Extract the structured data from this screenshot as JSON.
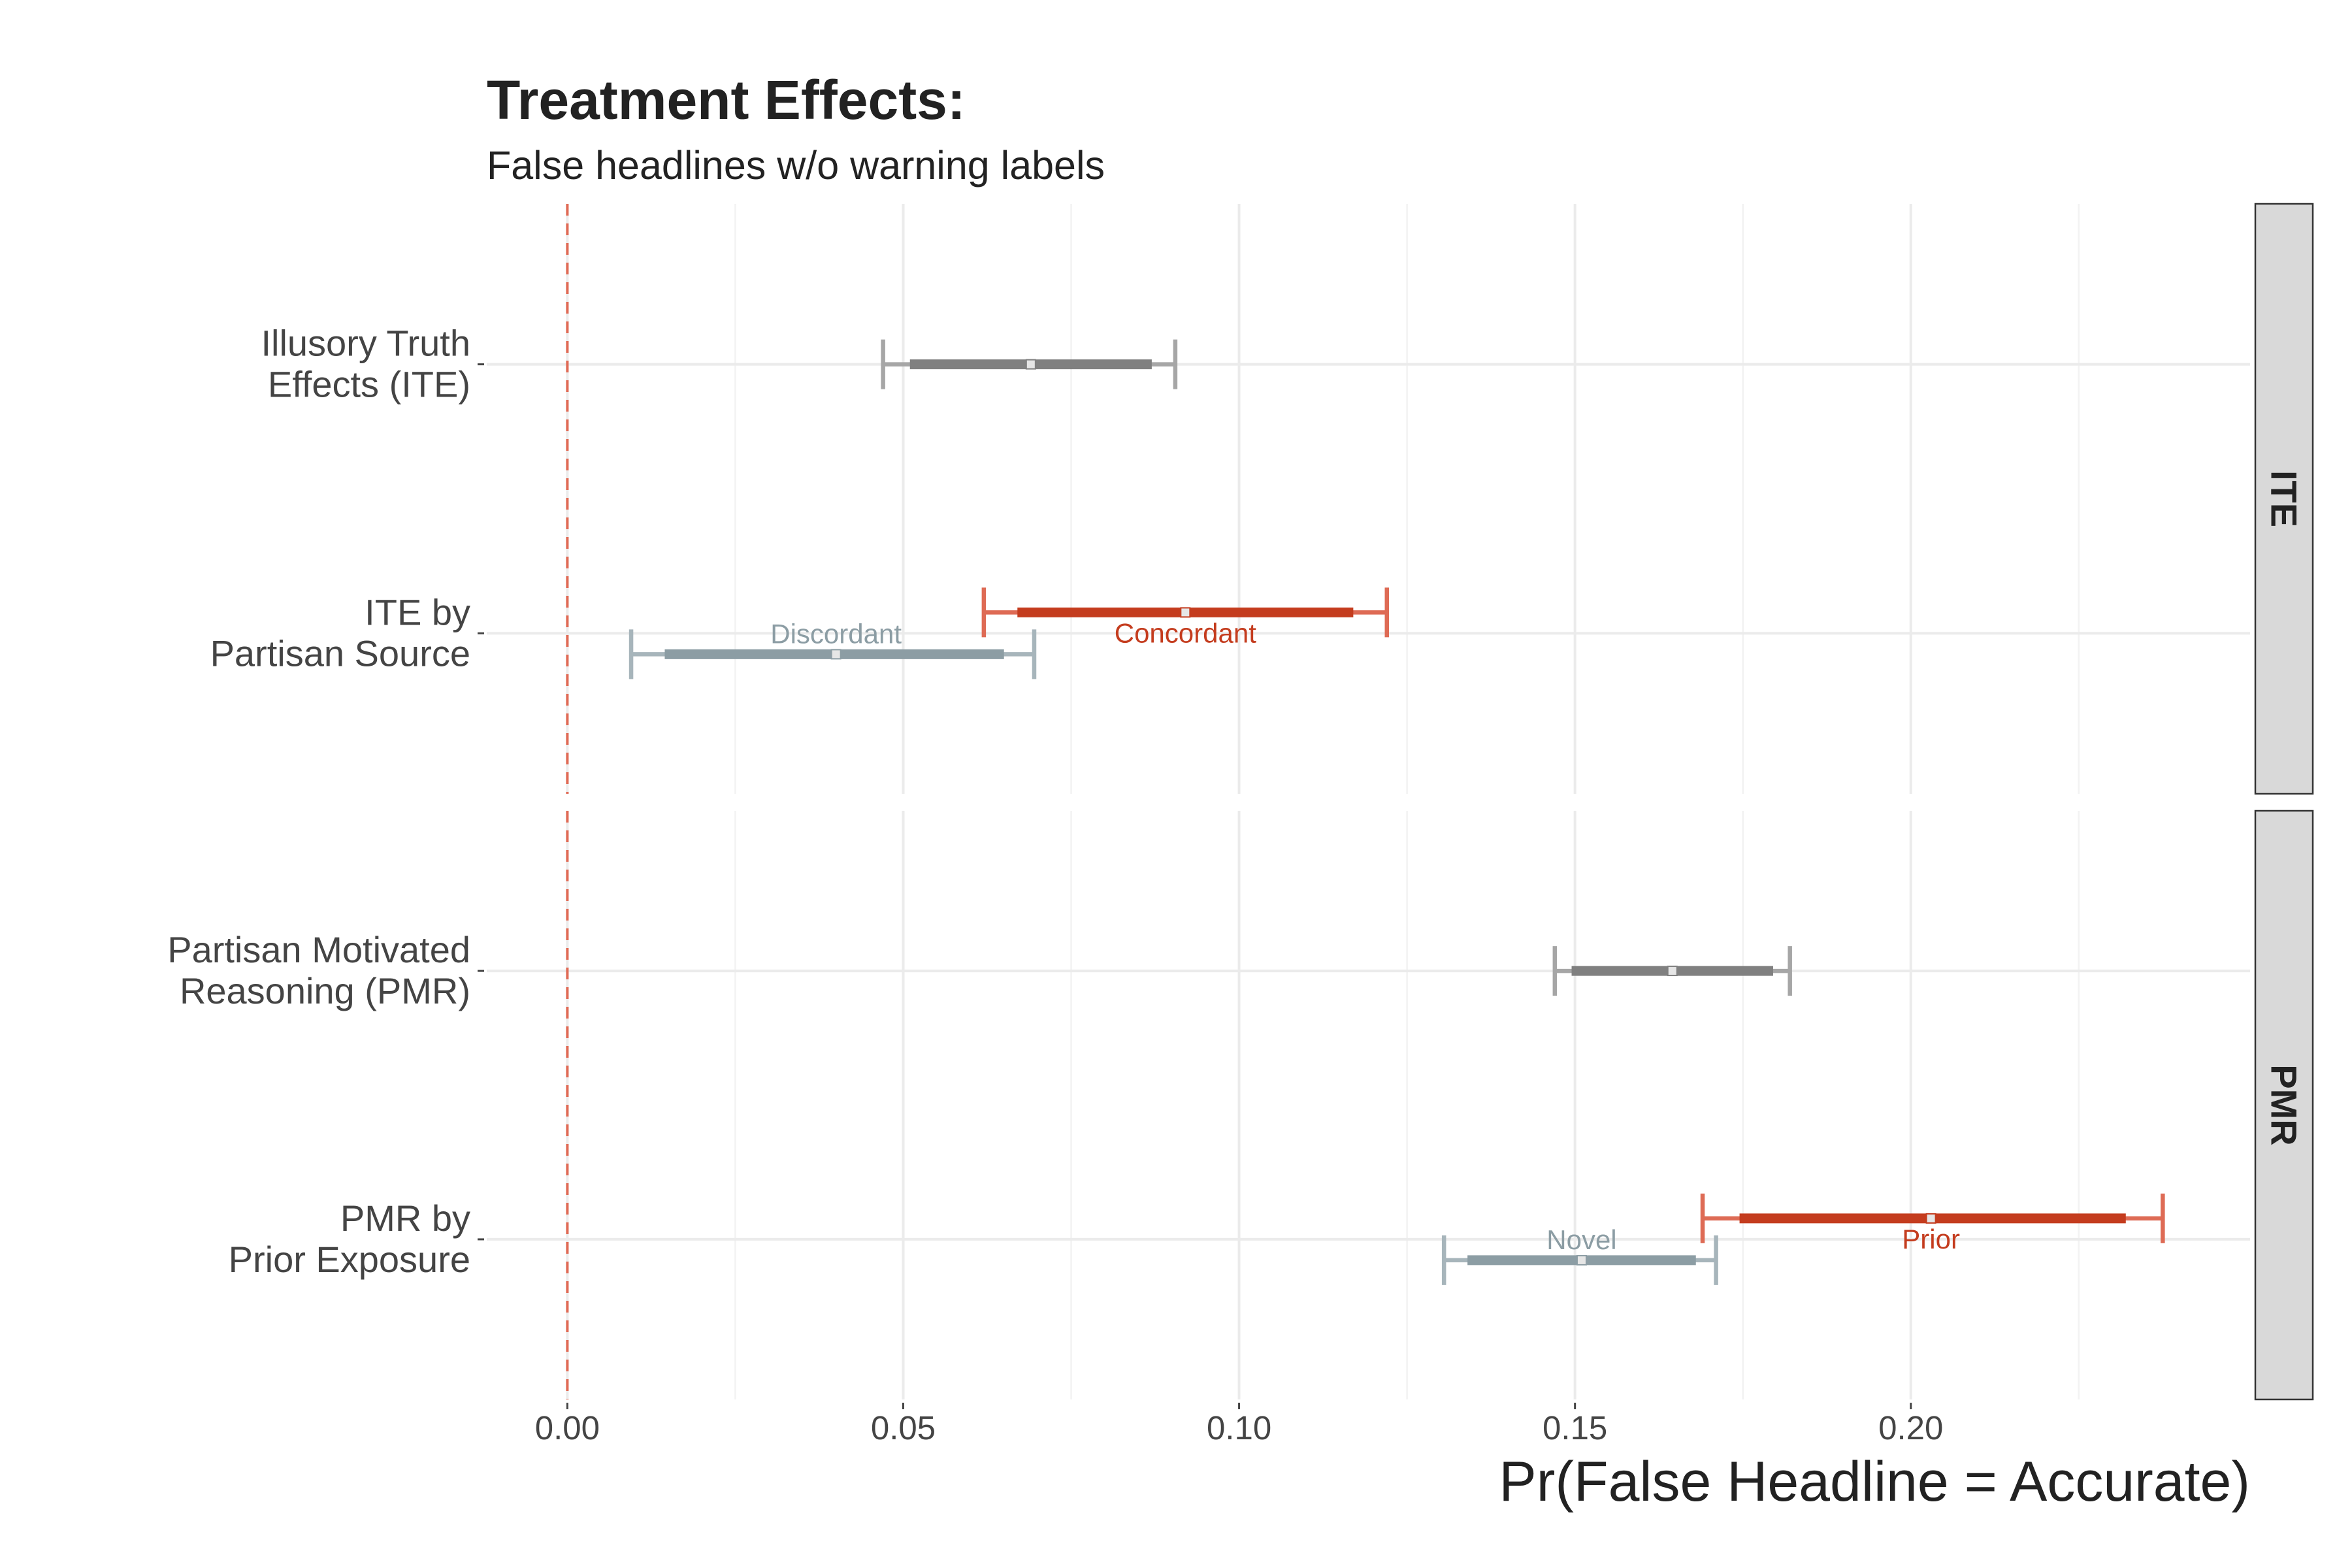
{
  "chart_data": {
    "type": "errorbar",
    "title": "Treatment Effects:",
    "subtitle": "False headlines w/o warning labels",
    "xlabel": "Pr(False Headline = Accurate)",
    "xlim": [
      -0.012,
      0.2505
    ],
    "x_ticks": [
      "0.00",
      "0.05",
      "0.10",
      "0.15",
      "0.20"
    ],
    "x_tick_values": [
      0.0,
      0.05,
      0.1,
      0.15,
      0.2
    ],
    "reference_line": {
      "x": 0.0,
      "style": "dashed",
      "color": "#e06a55"
    },
    "grid": true,
    "colors": {
      "overall": "#808080",
      "overall_ci95": "#a6a6a6",
      "concordant_prior": "#c43c1e",
      "concordant_prior_ci95": "#de6b55",
      "discordant_novel": "#8c9da4",
      "discordant_novel_ci95": "#a7b5bb"
    },
    "panels": [
      {
        "strip_label": "ITE",
        "rows": [
          {
            "label_line1": "Illusory Truth",
            "label_line2": "Effects (ITE)",
            "series": [
              {
                "group": "overall",
                "name": "",
                "estimate": 0.069,
                "ci90": [
                  0.051,
                  0.087
                ],
                "ci95": [
                  0.047,
                  0.0905
                ]
              }
            ]
          },
          {
            "label_line1": "ITE by",
            "label_line2": "Partisan Source",
            "series": [
              {
                "group": "concordant_prior",
                "name": "Concordant",
                "estimate": 0.092,
                "ci90": [
                  0.067,
                  0.117
                ],
                "ci95": [
                  0.062,
                  0.122
                ]
              },
              {
                "group": "discordant_novel",
                "name": "Discordant",
                "estimate": 0.04,
                "ci90": [
                  0.0145,
                  0.065
                ],
                "ci95": [
                  0.0095,
                  0.0695
                ]
              }
            ]
          }
        ]
      },
      {
        "strip_label": "PMR",
        "rows": [
          {
            "label_line1": "Partisan Motivated",
            "label_line2": "Reasoning (PMR)",
            "series": [
              {
                "group": "overall",
                "name": "",
                "estimate": 0.1645,
                "ci90": [
                  0.1495,
                  0.1795
                ],
                "ci95": [
                  0.147,
                  0.182
                ]
              }
            ]
          },
          {
            "label_line1": "PMR by",
            "label_line2": "Prior Exposure",
            "series": [
              {
                "group": "concordant_prior",
                "name": "Prior",
                "estimate": 0.203,
                "ci90": [
                  0.1745,
                  0.232
                ],
                "ci95": [
                  0.169,
                  0.2375
                ]
              },
              {
                "group": "discordant_novel",
                "name": "Novel",
                "estimate": 0.151,
                "ci90": [
                  0.134,
                  0.168
                ],
                "ci95": [
                  0.1305,
                  0.171
                ]
              }
            ]
          }
        ]
      }
    ]
  }
}
